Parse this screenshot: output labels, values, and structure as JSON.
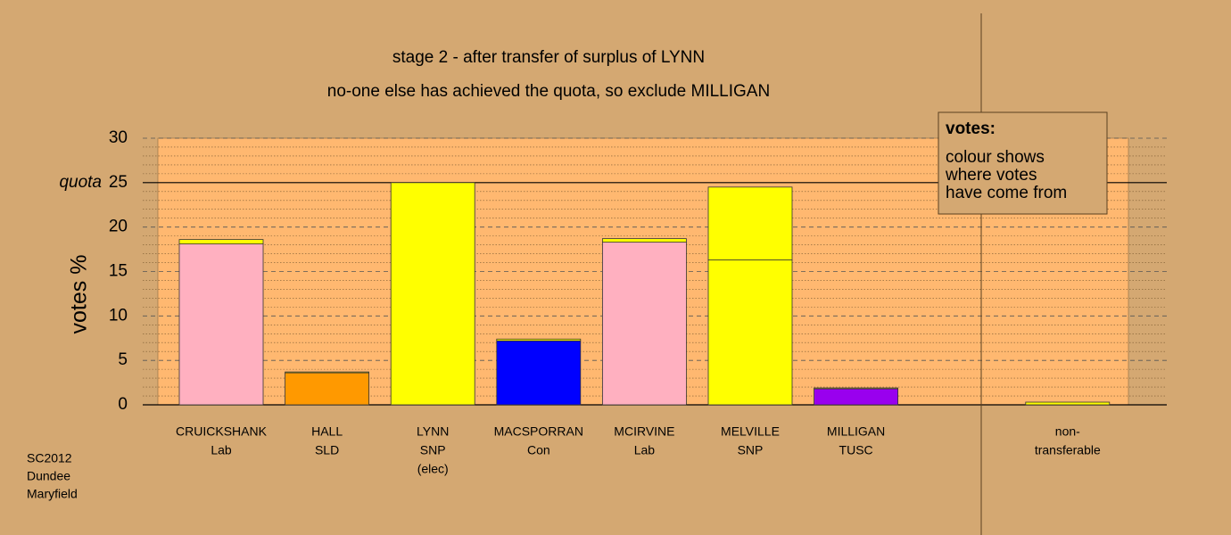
{
  "chart_data": {
    "type": "stacked_bar",
    "title": "stage 2 - after transfer of surplus of LYNN",
    "subtitle": "no-one else has achieved the quota, so exclude MILLIGAN",
    "ylabel": "votes %",
    "categories": [
      [
        "CRUICKSHANK",
        "Lab"
      ],
      [
        "HALL",
        "SLD"
      ],
      [
        "LYNN",
        "SNP",
        "(elec)"
      ],
      [
        "MACSPORRAN",
        "Con"
      ],
      [
        "MCIRVINE",
        "Lab"
      ],
      [
        "MELVILLE",
        "SNP"
      ],
      [
        "MILLIGAN",
        "TUSC"
      ],
      null,
      [
        "non-",
        "transferable"
      ]
    ],
    "series": [
      {
        "colors": [
          "#ffb0c0",
          "#ff9900",
          "#ffff00",
          "#0000ff",
          "#ffb0c0",
          "#ffff00",
          "#9900ee",
          null,
          null
        ],
        "values": [
          18.1,
          3.6,
          25.0,
          7.2,
          18.3,
          16.3,
          1.8,
          null,
          null
        ]
      },
      {
        "color": "#ffff00",
        "values": [
          0.5,
          0.1,
          null,
          0.2,
          0.4,
          8.2,
          0.1,
          null,
          0.3
        ]
      }
    ],
    "ylim": [
      0,
      30
    ],
    "yticks": [
      0,
      5,
      10,
      15,
      20,
      25,
      30
    ],
    "minor_yticks": [
      1,
      2,
      3,
      4,
      6,
      7,
      8,
      9,
      11,
      12,
      13,
      14,
      16,
      17,
      18,
      19,
      21,
      22,
      23,
      24,
      26,
      27,
      28,
      29
    ],
    "quota": {
      "value": 25,
      "label": "quota"
    },
    "grid": true,
    "legend": {
      "title": "votes:",
      "lines": [
        "colour shows",
        "where votes",
        "have come from"
      ]
    },
    "note": [
      "SC2012",
      "Dundee",
      "Maryfield"
    ]
  }
}
